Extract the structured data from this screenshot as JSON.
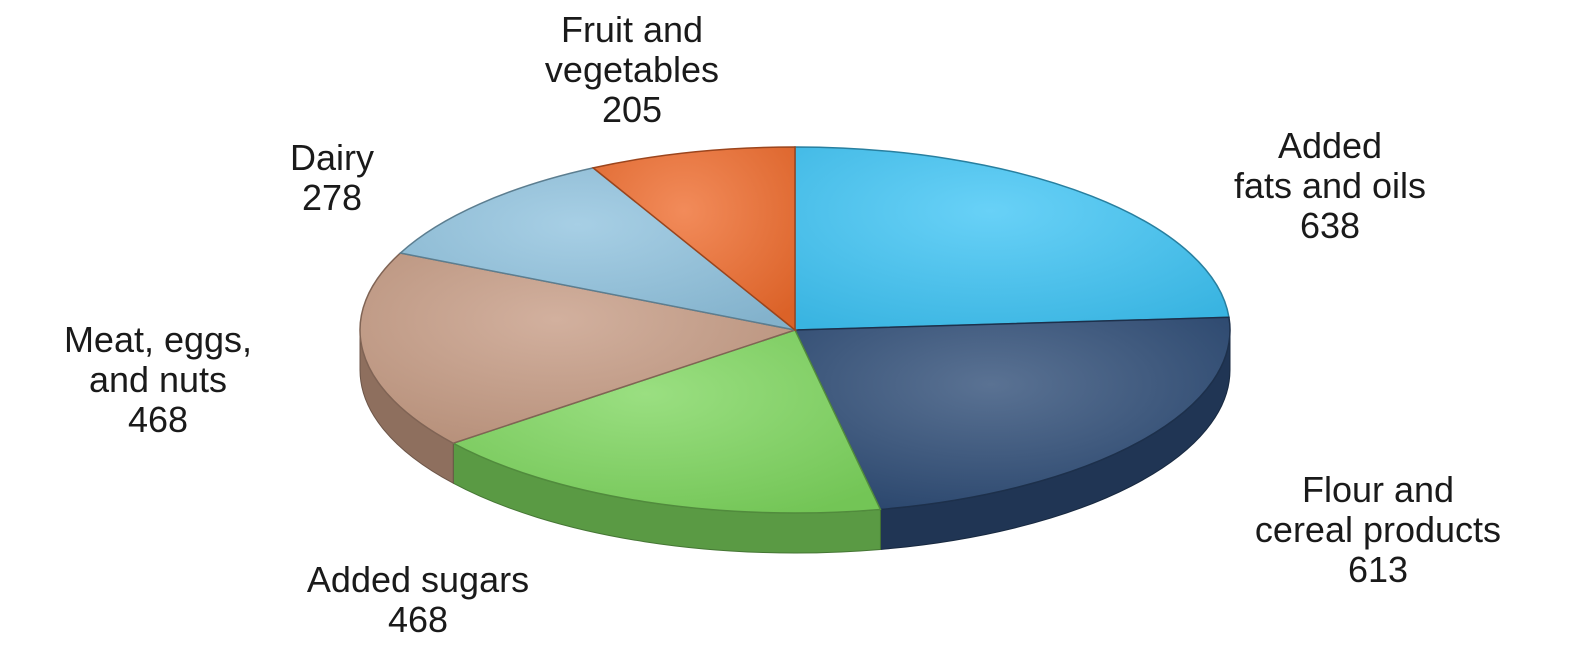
{
  "chart_data": {
    "type": "pie",
    "title": "",
    "style": "3d-tilted",
    "slices": [
      {
        "label_lines": [
          "Added",
          "fats and oils"
        ],
        "value": 638,
        "value_text": "638",
        "color": "#3EC4F5"
      },
      {
        "label_lines": [
          "Flour and",
          "cereal products"
        ],
        "value": 613,
        "value_text": "613",
        "color": "#2C4A74"
      },
      {
        "label_lines": [
          "Added sugars"
        ],
        "value": 468,
        "value_text": "468",
        "color": "#7DD65E"
      },
      {
        "label_lines": [
          "Meat, eggs,",
          "and nuts"
        ],
        "value": 468,
        "value_text": "468",
        "color": "#C59A82"
      },
      {
        "label_lines": [
          "Dairy"
        ],
        "value": 278,
        "value_text": "278",
        "color": "#8EC2DE"
      },
      {
        "label_lines": [
          "Fruit and",
          "vegetables"
        ],
        "value": 205,
        "value_text": "205",
        "color": "#EE6A2C"
      }
    ]
  }
}
